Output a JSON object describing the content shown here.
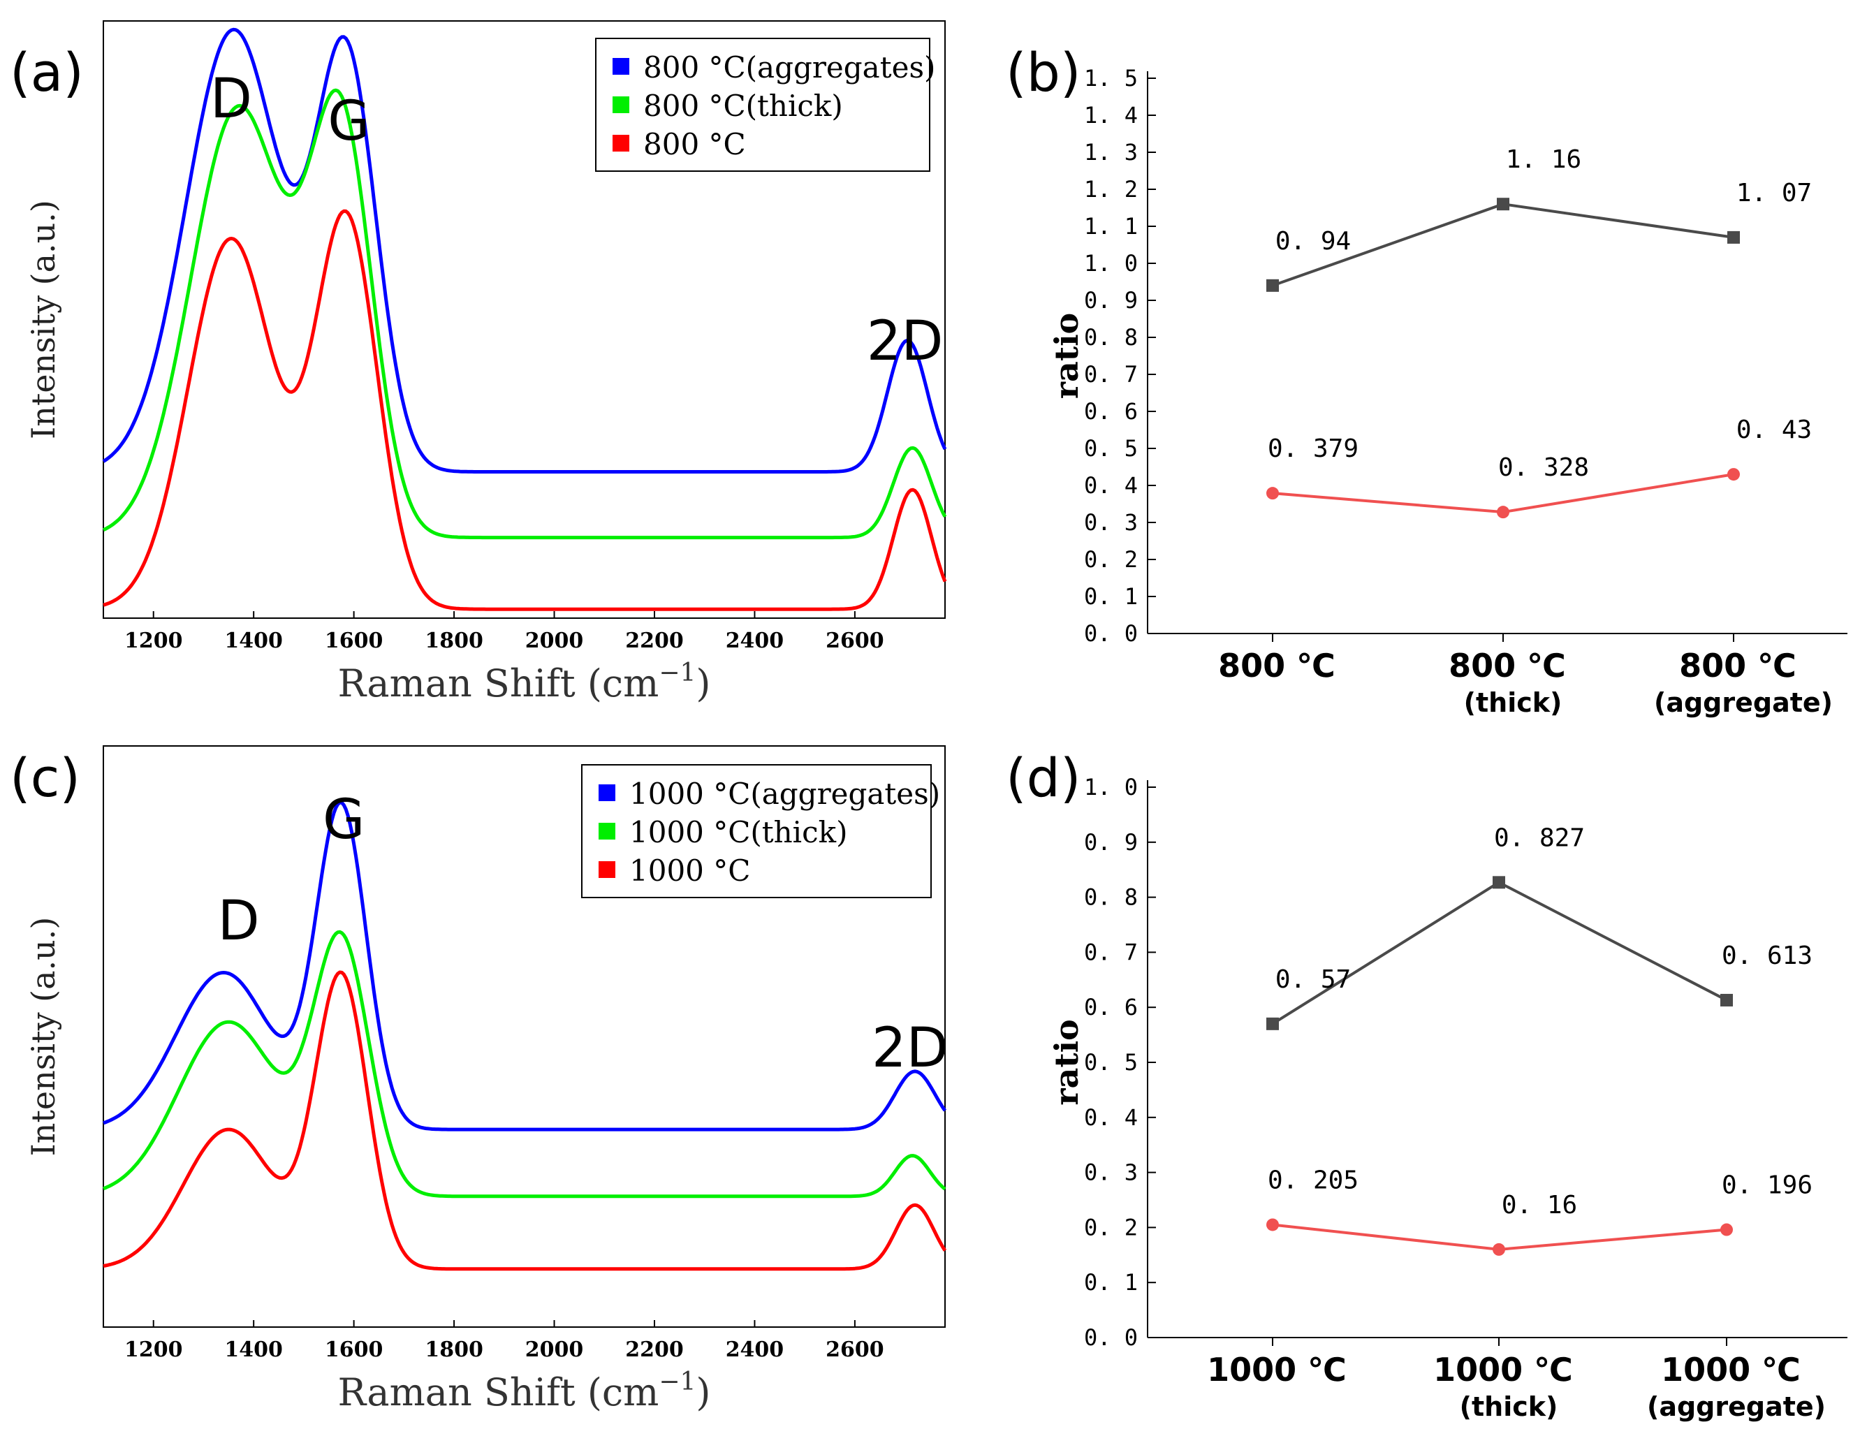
{
  "chart_data": [
    {
      "panel": "(a)",
      "type": "line",
      "xlabel": "Raman Shift (cm",
      "xlabel_sup": "−1",
      "xlabel_close": ")",
      "ylabel": "Intensity (a.u.)",
      "xlim": [
        1100,
        2780
      ],
      "xticks": [
        "1200",
        "1400",
        "1600",
        "1800",
        "2000",
        "2200",
        "2400",
        "2600"
      ],
      "xtick_values": [
        1200,
        1400,
        1600,
        1800,
        2000,
        2200,
        2400,
        2600
      ],
      "peak_labels": [
        {
          "text": "D",
          "x": 1355
        },
        {
          "text": "G",
          "x": 1590
        },
        {
          "text": "2D",
          "x": 2700
        }
      ],
      "legend": "top-right",
      "series": [
        {
          "name": "800 °C(aggregates)",
          "color": "#0000ff",
          "baseline": 0.245,
          "peaks": [
            [
              1360,
              0.74,
              95
            ],
            [
              1585,
              0.68,
              60
            ],
            [
              2705,
              0.22,
              40
            ]
          ]
        },
        {
          "name": "800 °C(thick)",
          "color": "#00ee00",
          "baseline": 0.135,
          "peaks": [
            [
              1370,
              0.72,
              95
            ],
            [
              1575,
              0.67,
              62
            ],
            [
              2715,
              0.15,
              38
            ]
          ]
        },
        {
          "name": "800 °C",
          "color": "#ff0000",
          "baseline": 0.015,
          "peaks": [
            [
              1355,
              0.62,
              85
            ],
            [
              1585,
              0.65,
              62
            ],
            [
              2715,
              0.2,
              38
            ]
          ]
        }
      ]
    },
    {
      "panel": "(b)",
      "type": "line",
      "ylabel": "ratio",
      "ylim": [
        0,
        1.5
      ],
      "yticks": [
        "0. 0",
        "0. 1",
        "0. 2",
        "0. 3",
        "0. 4",
        "0. 5",
        "0. 6",
        "0. 7",
        "0. 8",
        "0. 9",
        "1. 0",
        "1. 1",
        "1. 2",
        "1. 3",
        "1. 4",
        "1. 5"
      ],
      "categories": [
        {
          "main": "800 ℃",
          "sub": ""
        },
        {
          "main": "800 ℃",
          "sub": "(thick)"
        },
        {
          "main": "800 ℃",
          "sub": "(aggregate)"
        }
      ],
      "series": [
        {
          "color": "#4a4a4a",
          "marker": "square",
          "values": [
            0.94,
            1.16,
            1.07
          ],
          "labels": [
            "0. 94",
            "1. 16",
            "1. 07"
          ]
        },
        {
          "color": "#f05050",
          "marker": "circle",
          "values": [
            0.379,
            0.328,
            0.43
          ],
          "labels": [
            "0. 379",
            "0. 328",
            "0. 43"
          ]
        }
      ]
    },
    {
      "panel": "(c)",
      "type": "line",
      "xlabel": "Raman Shift (cm",
      "xlabel_sup": "−1",
      "xlabel_close": ")",
      "ylabel": "Intensity (a.u.)",
      "xlim": [
        1100,
        2780
      ],
      "xticks": [
        "1200",
        "1400",
        "1600",
        "1800",
        "2000",
        "2200",
        "2400",
        "2600"
      ],
      "xtick_values": [
        1200,
        1400,
        1600,
        1800,
        2000,
        2200,
        2400,
        2600
      ],
      "peak_labels": [
        {
          "text": "D",
          "x": 1370
        },
        {
          "text": "G",
          "x": 1580
        },
        {
          "text": "2D",
          "x": 2710
        }
      ],
      "legend": "top-right",
      "series": [
        {
          "name": "1000 °C(aggregates)",
          "color": "#0000ff",
          "baseline": 0.34,
          "peaks": [
            [
              1340,
              0.27,
              95
            ],
            [
              1575,
              0.55,
              50
            ],
            [
              2720,
              0.1,
              40
            ]
          ]
        },
        {
          "name": "1000 °C(thick)",
          "color": "#00ee00",
          "baseline": 0.225,
          "peaks": [
            [
              1350,
              0.3,
              100
            ],
            [
              1575,
              0.43,
              55
            ],
            [
              2715,
              0.07,
              35
            ]
          ]
        },
        {
          "name": "1000 °C",
          "color": "#ff0000",
          "baseline": 0.1,
          "peaks": [
            [
              1350,
              0.24,
              90
            ],
            [
              1575,
              0.5,
              52
            ],
            [
              2720,
              0.11,
              38
            ]
          ]
        }
      ]
    },
    {
      "panel": "(d)",
      "type": "line",
      "ylabel": "ratio",
      "ylim": [
        0,
        1.0
      ],
      "yticks": [
        "0. 0",
        "0. 1",
        "0. 2",
        "0. 3",
        "0. 4",
        "0. 5",
        "0. 6",
        "0. 7",
        "0. 8",
        "0. 9",
        "1. 0"
      ],
      "categories": [
        {
          "main": "1000 ℃",
          "sub": ""
        },
        {
          "main": "1000 ℃",
          "sub": "(thick)"
        },
        {
          "main": "1000 ℃",
          "sub": "(aggregate)"
        }
      ],
      "series": [
        {
          "color": "#4a4a4a",
          "marker": "square",
          "values": [
            0.57,
            0.827,
            0.613
          ],
          "labels": [
            "0. 57",
            "0. 827",
            "0. 613"
          ]
        },
        {
          "color": "#f05050",
          "marker": "circle",
          "values": [
            0.205,
            0.16,
            0.196
          ],
          "labels": [
            "0. 205",
            "0. 16",
            "0. 196"
          ]
        }
      ]
    }
  ]
}
